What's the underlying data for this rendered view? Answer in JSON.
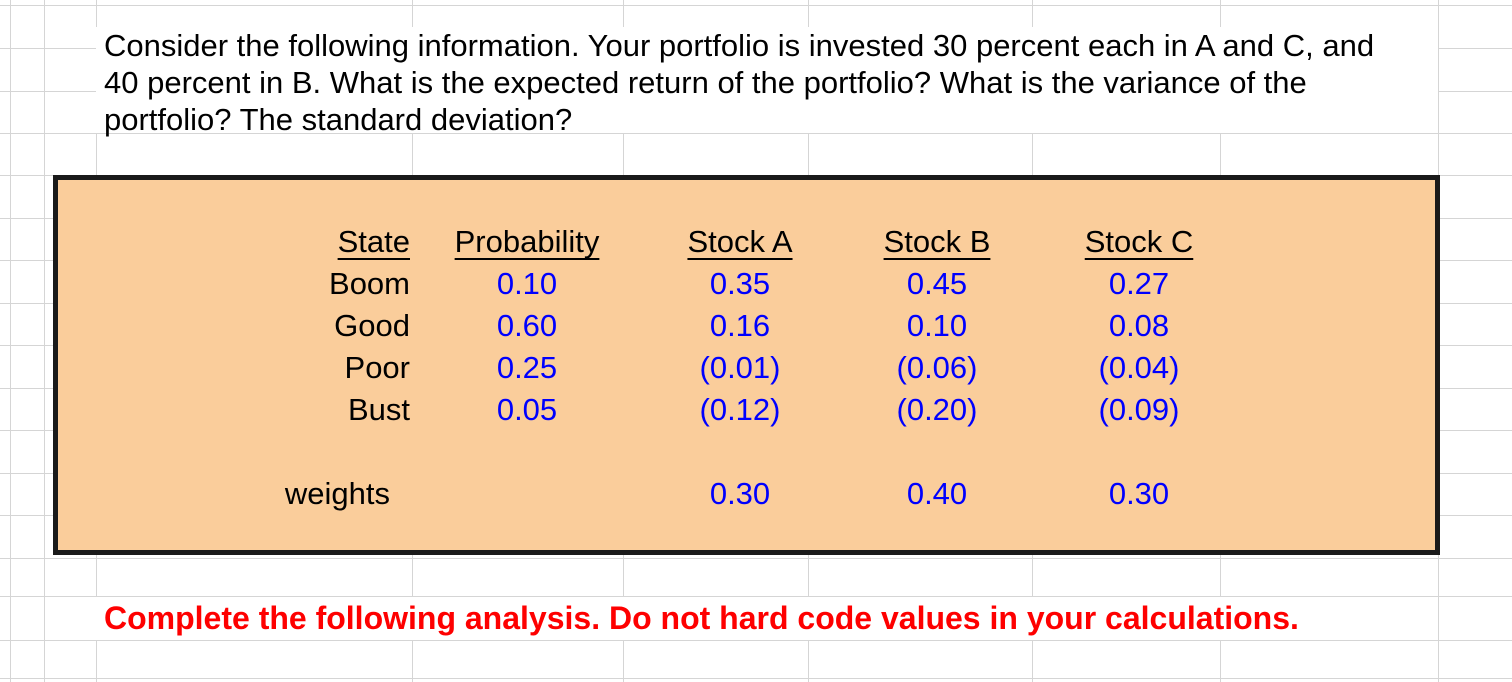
{
  "question": {
    "lines": [
      "Consider the following information. Your portfolio is invested 30 percent each in A and C, and",
      "40 percent in B. What is the expected return of the portfolio? What is the variance of the",
      "portfolio? The standard deviation?"
    ]
  },
  "table": {
    "headers": [
      "State",
      "Probability",
      "Stock A",
      "Stock B",
      "Stock C"
    ],
    "rows": [
      {
        "state": "Boom",
        "values": [
          "0.10",
          "0.35",
          "0.45",
          "0.27"
        ]
      },
      {
        "state": "Good",
        "values": [
          "0.60",
          "0.16",
          "0.10",
          "0.08"
        ]
      },
      {
        "state": "Poor",
        "values": [
          "0.25",
          "(0.01)",
          "(0.06)",
          "(0.04)"
        ]
      },
      {
        "state": "Bust",
        "values": [
          "0.05",
          "(0.12)",
          "(0.20)",
          "(0.09)"
        ]
      }
    ],
    "weights_label": "weights",
    "weights_values": [
      "0.30",
      "0.40",
      "0.30"
    ]
  },
  "instruction": "Complete the following analysis. Do not hard code values in your calculations.",
  "colors": {
    "value_blue": "#0000fe",
    "instruction_red": "#fe0000",
    "box_fill": "#facd9b",
    "box_border": "#1a1a1a",
    "gridline": "#d5d5d5"
  }
}
